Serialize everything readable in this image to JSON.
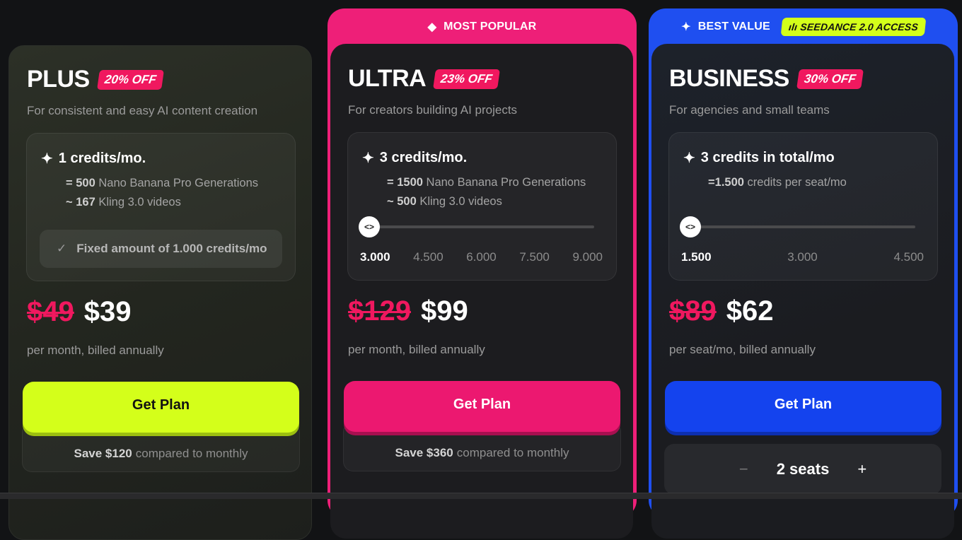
{
  "colors": {
    "pink": "#f0185f",
    "lime": "#d4ff1a",
    "blue": "#1443ee"
  },
  "plans": [
    {
      "name": "PLUS",
      "discount": "20% OFF",
      "description": "For consistent and easy AI content creation",
      "credits": "1 credits/mo.",
      "line1_prefix": "= ",
      "line1_value": "500",
      "line1_text": " Nano Banana Pro Generations",
      "line2_prefix": "~ ",
      "line2_value": "167",
      "line2_text": " Kling 3.0 videos",
      "fixed_note": "Fixed amount of 1.000 credits/mo",
      "old_price": "$49",
      "price": "$39",
      "billing": "per month, billed annually",
      "button": "Get Plan",
      "save_amount": "Save $120",
      "save_text": "compared to monthly"
    },
    {
      "ribbon": "MOST POPULAR",
      "ribbon_icon": "diamond-icon",
      "name": "ULTRA",
      "discount": "23% OFF",
      "description": "For creators building AI projects",
      "credits": "3 credits/mo.",
      "line1_prefix": "= ",
      "line1_value": "1500",
      "line1_text": " Nano Banana Pro Generations",
      "line2_prefix": "~ ",
      "line2_value": "500",
      "line2_text": " Kling 3.0 videos",
      "slider_ticks": [
        "3.000",
        "4.500",
        "6.000",
        "7.500",
        "9.000"
      ],
      "slider_value": "3.000",
      "old_price": "$129",
      "price": "$99",
      "billing": "per month, billed annually",
      "button": "Get Plan",
      "save_amount": "Save $360",
      "save_text": "compared to monthly"
    },
    {
      "ribbon": "BEST VALUE",
      "ribbon_icon": "sparkle-icon",
      "access_badge": "SEEDANCE 2.0 ACCESS",
      "name": "BUSINESS",
      "discount": "30% OFF",
      "description": "For agencies and small teams",
      "credits": "3 credits in total/mo",
      "line1_prefix": "=",
      "line1_value": "1.500",
      "line1_text": " credits per seat/mo",
      "slider_ticks": [
        "1.500",
        "3.000",
        "4.500"
      ],
      "slider_value": "1.500",
      "old_price": "$89",
      "price": "$62",
      "billing": "per seat/mo, billed annually",
      "button": "Get Plan",
      "seats": "2 seats"
    }
  ]
}
